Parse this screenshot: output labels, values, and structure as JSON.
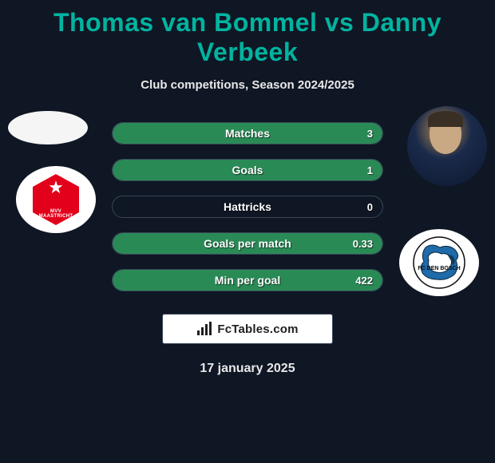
{
  "title_color": "#00b4a0",
  "background_color": "#0f1624",
  "pill_border_color": "#3a4558",
  "fill_color_right": "#2a8a56",
  "header": {
    "title": "Thomas van Bommel vs Danny Verbeek",
    "subtitle": "Club competitions, Season 2024/2025"
  },
  "stats": [
    {
      "label": "Matches",
      "right_value": "3",
      "right_fill_pct": 100
    },
    {
      "label": "Goals",
      "right_value": "1",
      "right_fill_pct": 100
    },
    {
      "label": "Hattricks",
      "right_value": "0",
      "right_fill_pct": 0
    },
    {
      "label": "Goals per match",
      "right_value": "0.33",
      "right_fill_pct": 100
    },
    {
      "label": "Min per goal",
      "right_value": "422",
      "right_fill_pct": 100
    }
  ],
  "left_team": {
    "badge_text": "MVV",
    "badge_sub": "MAASTRICHT",
    "badge_bg": "#e2001a"
  },
  "right_team": {
    "badge_text": "FC DEN BOSCH"
  },
  "branding": {
    "site": "FcTables.com"
  },
  "date": "17 january 2025"
}
